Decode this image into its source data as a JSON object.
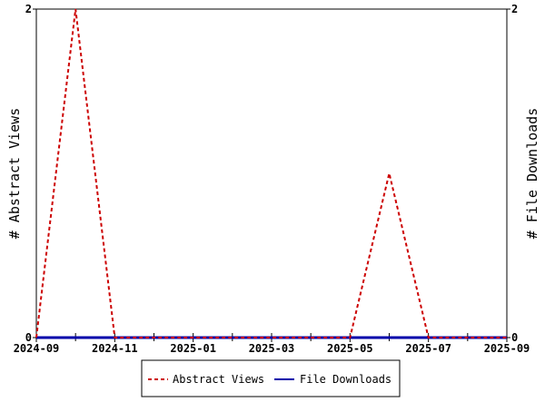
{
  "chart_data": {
    "type": "line",
    "x": [
      "2024-09",
      "2024-10",
      "2024-11",
      "2024-12",
      "2025-01",
      "2025-02",
      "2025-03",
      "2025-04",
      "2025-05",
      "2025-06",
      "2025-07",
      "2025-08",
      "2025-09"
    ],
    "x_tick_labels": [
      "2024-09",
      "2024-11",
      "2025-01",
      "2025-03",
      "2025-05",
      "2025-07",
      "2025-09"
    ],
    "ylabel_left": "# Abstract Views",
    "ylabel_right": "# File Downloads",
    "ylim_left": [
      0,
      2
    ],
    "ylim_right": [
      0,
      2
    ],
    "y_tick_labels_left": [
      "0",
      "2"
    ],
    "y_tick_labels_right": [
      "0",
      "2"
    ],
    "grid": false,
    "legend_placement": "bottom-center",
    "series": [
      {
        "name": "Abstract Views",
        "axis": "left",
        "color": "#cc0000",
        "style": "dashed",
        "values": [
          0,
          2,
          0,
          0,
          0,
          0,
          0,
          0,
          0,
          1,
          0,
          0,
          0
        ]
      },
      {
        "name": "File Downloads",
        "axis": "right",
        "color": "#0000aa",
        "style": "solid",
        "values": [
          0,
          0,
          0,
          0,
          0,
          0,
          0,
          0,
          0,
          0,
          0,
          0,
          0
        ]
      }
    ]
  }
}
